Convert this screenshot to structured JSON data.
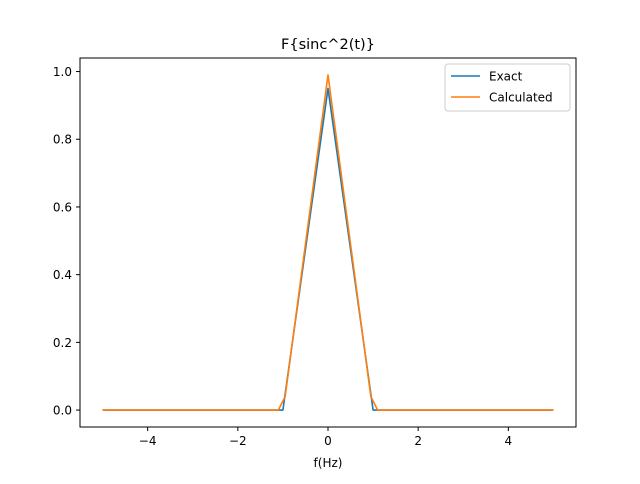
{
  "chart_data": {
    "type": "line",
    "title": "F{sinc^2(t)}",
    "xlabel": "f(Hz)",
    "ylabel": "",
    "xlim": [
      -5.5,
      5.5
    ],
    "ylim": [
      -0.05,
      1.04
    ],
    "xticks": [
      -4,
      -2,
      0,
      2,
      4
    ],
    "yticks": [
      0.0,
      0.2,
      0.4,
      0.6,
      0.8,
      1.0
    ],
    "xtick_labels": [
      "−4",
      "−2",
      "0",
      "2",
      "4"
    ],
    "ytick_labels": [
      "0.0",
      "0.2",
      "0.4",
      "0.6",
      "0.8",
      "1.0"
    ],
    "grid": false,
    "legend_position": "top-right",
    "series": [
      {
        "name": "Exact",
        "color": "#1f77b4",
        "x": [
          -5.0,
          -1.1,
          -1.0,
          0.0,
          1.0,
          1.1,
          5.0
        ],
        "y": [
          0.0,
          0.0,
          0.0,
          0.95,
          0.0,
          0.0,
          0.0
        ]
      },
      {
        "name": "Calculated",
        "color": "#ff7f0e",
        "x": [
          -5.0,
          -1.1,
          -0.95,
          0.0,
          0.95,
          1.1,
          5.0
        ],
        "y": [
          0.0,
          0.0,
          0.04,
          0.99,
          0.04,
          0.0,
          0.0
        ]
      }
    ]
  }
}
